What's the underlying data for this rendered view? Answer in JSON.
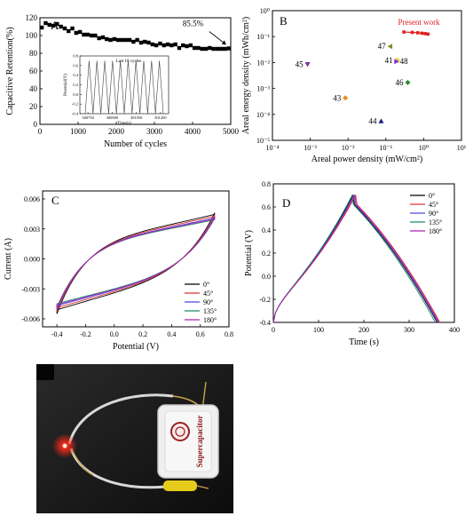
{
  "chart_data": [
    {
      "panel": "A",
      "type": "scatter",
      "xlabel": "Number of cycles",
      "ylabel": "Capacitive Retention(%)",
      "xlim": [
        0,
        5000
      ],
      "ylim": [
        0,
        120
      ],
      "xticks": [
        "0",
        "1000",
        "2000",
        "3000",
        "4000",
        "5000"
      ],
      "yticks": [
        "0",
        "20",
        "40",
        "60",
        "80",
        "100",
        "120"
      ],
      "series": [
        {
          "x": [
            50,
            150,
            250,
            350,
            450,
            550,
            650,
            750,
            850,
            950,
            1050,
            1150,
            1250,
            1350,
            1450,
            1550,
            1650,
            1750,
            1850,
            1950,
            2050,
            2150,
            2250,
            2350,
            2450,
            2550,
            2650,
            2750,
            2850,
            2950,
            3050,
            3150,
            3250,
            3350,
            3450,
            3550,
            3650,
            3750,
            3850,
            3950,
            4050,
            4150,
            4250,
            4350,
            4450,
            4550,
            4650,
            4750,
            4850,
            4950
          ],
          "y": [
            109,
            114,
            112,
            111,
            113,
            110,
            108,
            105,
            108,
            103,
            104,
            101,
            101,
            100,
            100,
            97,
            98,
            96,
            95,
            96,
            95,
            95,
            95,
            95,
            93,
            95,
            92,
            93,
            92,
            90,
            89,
            91,
            89,
            90,
            89,
            90,
            86,
            89,
            88,
            89,
            86,
            86,
            85,
            85,
            86,
            85,
            85,
            85,
            85,
            85.5
          ]
        }
      ],
      "annotation": {
        "text": "85.5%",
        "x": 4950,
        "y": 85.5
      },
      "inset": {
        "label": "Last 10 cycles",
        "xlabel": "Time(s)",
        "ylabel": "Potential(V)",
        "xlim": [
          300700,
          301250
        ],
        "ylim": [
          -0.4,
          0.8
        ],
        "xticks": [
          "300750",
          "300900",
          "301050",
          "301200"
        ],
        "yticks": [
          "-0.4",
          "-0.2",
          "0.0",
          "0.2",
          "0.4",
          "0.6",
          "0.8"
        ],
        "cycles": 10,
        "vmin": -0.4,
        "vmax": 0.7
      }
    },
    {
      "panel": "B",
      "type": "scatter",
      "xlabel": "Areal power density (mW/cm²)",
      "ylabel": "Areal energy density (mWh/cm²)",
      "xscale": "log",
      "yscale": "log",
      "xlim": [
        0.0001,
        10
      ],
      "ylim": [
        1e-05,
        1
      ],
      "xticks": [
        "10⁻⁴",
        "10⁻³",
        "10⁻²",
        "10⁻¹",
        "10⁰",
        "10¹"
      ],
      "yticks": [
        "10⁻⁵",
        "10⁻⁴",
        "10⁻³",
        "10⁻²",
        "10⁻¹",
        "10⁰"
      ],
      "points": [
        {
          "label": "45",
          "x": 0.00085,
          "y": 0.0085,
          "color": "#7a2e9e",
          "marker": "triangle-down"
        },
        {
          "label": "43",
          "x": 0.0085,
          "y": 0.00043,
          "color": "#f08a1c",
          "marker": "diamond"
        },
        {
          "label": "47",
          "x": 0.13,
          "y": 0.042,
          "color": "#7f8a1e",
          "marker": "triangle-left"
        },
        {
          "label": "41",
          "x": 0.2,
          "y": 0.012,
          "color": "#dddd55",
          "marker": "circle"
        },
        {
          "label": "48",
          "x": 0.19,
          "y": 0.011,
          "color": "#8a2be2",
          "marker": "triangle-right"
        },
        {
          "label": "46",
          "x": 0.38,
          "y": 0.0017,
          "color": "#2e8b2e",
          "marker": "diamond"
        },
        {
          "label": "44",
          "x": 0.075,
          "y": 5.5e-05,
          "color": "#1a1a8c",
          "marker": "triangle-up"
        }
      ],
      "present_work": {
        "label": "Present work",
        "color": "#e02020",
        "x": [
          0.3,
          0.5,
          0.7,
          0.9,
          1.1,
          1.3
        ],
        "y": [
          0.15,
          0.145,
          0.14,
          0.135,
          0.13,
          0.125
        ]
      }
    },
    {
      "panel": "C",
      "type": "line",
      "xlabel": "Potential (V)",
      "ylabel": "Current (A)",
      "xlim": [
        -0.5,
        0.8
      ],
      "ylim": [
        -0.0068,
        0.0068
      ],
      "xticks": [
        "-0.4",
        "-0.2",
        "0.0",
        "0.2",
        "0.4",
        "0.6",
        "0.8"
      ],
      "yticks": [
        "-0.006",
        "-0.003",
        "0.000",
        "0.003",
        "0.006"
      ],
      "series": [
        {
          "name": "0°",
          "color": "#000000",
          "scale": 1.0
        },
        {
          "name": "45°",
          "color": "#e03030",
          "scale": 0.96
        },
        {
          "name": "90°",
          "color": "#4a4ae0",
          "scale": 0.92
        },
        {
          "name": "135°",
          "color": "#1a8a6a",
          "scale": 0.88
        },
        {
          "name": "180°",
          "color": "#b020b0",
          "scale": 0.9
        }
      ]
    },
    {
      "panel": "D",
      "type": "line",
      "xlabel": "Time (s)",
      "ylabel": "Potential (V)",
      "xlim": [
        0,
        400
      ],
      "ylim": [
        -0.4,
        0.8
      ],
      "xticks": [
        "0",
        "100",
        "200",
        "300",
        "400"
      ],
      "yticks": [
        "-0.4",
        "-0.2",
        "0.0",
        "0.2",
        "0.4",
        "0.6",
        "0.8"
      ],
      "series": [
        {
          "name": "0°",
          "color": "#000000",
          "t_peak": 176,
          "t_end": 362
        },
        {
          "name": "45°",
          "color": "#e03030",
          "t_peak": 182,
          "t_end": 368
        },
        {
          "name": "90°",
          "color": "#4a4ae0",
          "t_peak": 178,
          "t_end": 364
        },
        {
          "name": "135°",
          "color": "#1a8a6a",
          "t_peak": 174,
          "t_end": 358
        },
        {
          "name": "180°",
          "color": "#b020b0",
          "t_peak": 180,
          "t_end": 366
        }
      ]
    }
  ],
  "photo": {
    "device_label": "Supercapacitor",
    "led_color": "#ff2a1a"
  }
}
